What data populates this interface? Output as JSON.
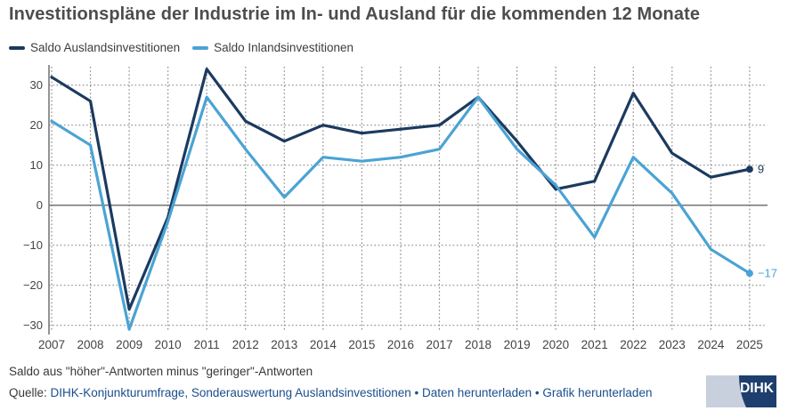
{
  "title": "Investitionspläne der Industrie im In- und Ausland für die kommenden 12 Monate",
  "colors": {
    "ausland": "#1b3a5f",
    "inland": "#4ba3d4",
    "title_text": "#4d4d4d",
    "axis": "#7a7a7a",
    "grid": "#8a8a8a",
    "tick_label": "#444444",
    "link_blue": "#1a4e8c",
    "logo_navy": "#1e3f6e",
    "logo_light": "#c8d0dd"
  },
  "legend": {
    "items": [
      {
        "key": "ausland",
        "label": "Saldo Auslandsinvestitionen"
      },
      {
        "key": "inland",
        "label": "Saldo Inlandsinvestitionen"
      }
    ]
  },
  "chart_data": {
    "type": "line",
    "title": "Investitionspläne der Industrie im In- und Ausland für die kommenden 12 Monate",
    "x": [
      2007,
      2008,
      2009,
      2010,
      2011,
      2012,
      2013,
      2014,
      2015,
      2016,
      2017,
      2018,
      2019,
      2020,
      2021,
      2022,
      2023,
      2024,
      2025
    ],
    "series": [
      {
        "key": "ausland",
        "name": "Saldo Auslandsinvestitionen",
        "color": "#1b3a5f",
        "values": [
          32,
          26,
          -26,
          -3,
          34,
          21,
          16,
          20,
          18,
          19,
          20,
          27,
          16,
          4,
          6,
          28,
          13,
          7,
          9
        ],
        "end_label": "9"
      },
      {
        "key": "inland",
        "name": "Saldo Inlandsinvestitionen",
        "color": "#4ba3d4",
        "values": [
          21,
          15,
          -31,
          -4,
          27,
          14,
          2,
          12,
          11,
          12,
          14,
          27,
          14,
          5,
          -8,
          12,
          3,
          -11,
          -17
        ],
        "end_label": "−17"
      }
    ],
    "ylim": [
      -33,
      36
    ],
    "yticks": [
      30,
      20,
      10,
      0,
      -10,
      -20,
      -30
    ],
    "grid": "dotted vertical per year and horizontal per 10 units, solid zero line",
    "legend_position": "top-left"
  },
  "footer": {
    "note": "Saldo aus \"höher\"-Antworten minus \"geringer\"-Antworten",
    "source_prefix": "Quelle: ",
    "source_text": "DIHK-Konjunkturumfrage, Sonderauswertung Auslandsinvestitionen",
    "separator": "•",
    "link_daten": "Daten herunterladen",
    "link_grafik": "Grafik herunterladen"
  },
  "logo": {
    "text": "DIHK"
  }
}
